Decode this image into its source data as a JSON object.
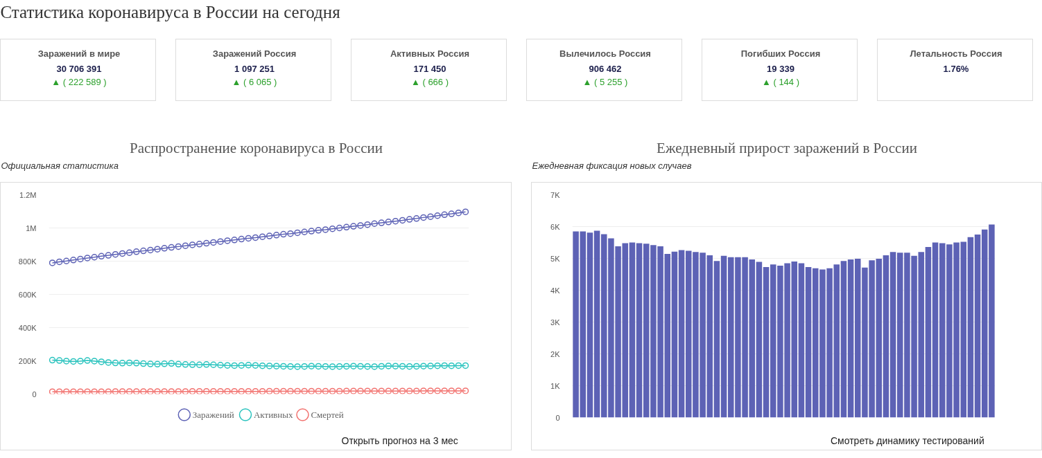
{
  "chart_data": [
    {
      "type": "other",
      "title": "Статистика коронавируса в России на сегодня",
      "categories": [
        "Заражений в мире",
        "Заражений Россия",
        "Активных Россия",
        "Вылечилось Россия",
        "Погибших Россия",
        "Летальность Россия"
      ],
      "series": [
        {
          "values": [
            30706391,
            1097251,
            171450,
            906462,
            19339,
            1.76
          ],
          "value_labels": [
            "30 706 391",
            "1 097 251",
            "171 450",
            "906 462",
            "19 339",
            "1.76%"
          ]
        },
        {
          "values": [
            222589,
            6065,
            666,
            5255,
            144,
            null
          ],
          "value_labels": [
            "▲ ( 222 589 )",
            "▲ ( 6 065 )",
            "▲ ( 666 )",
            "▲ ( 5 255 )",
            "▲ ( 144 )",
            null
          ]
        }
      ]
    },
    {
      "type": "line",
      "title": "Распространение коронавируса в России",
      "subtitle": "Официальная статистика",
      "categories": [
        null,
        null,
        null,
        null,
        null,
        null,
        null,
        null,
        null,
        null,
        null,
        null,
        null,
        null,
        null,
        null,
        null,
        null,
        null,
        null,
        null,
        null,
        null,
        null,
        null,
        null,
        null,
        null,
        null,
        null,
        null,
        null,
        null,
        null,
        null,
        null,
        null,
        null,
        null,
        null,
        null,
        null,
        null,
        null,
        null,
        null,
        null,
        null,
        null,
        null,
        null,
        null,
        null,
        null,
        null,
        null,
        null,
        null,
        null,
        null
      ],
      "series": [
        {
          "name": "Заражений",
          "color": "#5d62b5",
          "values": [
            790000,
            796000,
            801000,
            807000,
            813000,
            819000,
            824000,
            830000,
            835000,
            841000,
            846000,
            851000,
            857000,
            862000,
            867000,
            872000,
            878000,
            883000,
            888000,
            893000,
            898000,
            903000,
            908000,
            913000,
            918000,
            923000,
            928000,
            933000,
            938000,
            942000,
            947000,
            952000,
            957000,
            962000,
            966000,
            971000,
            976000,
            981000,
            986000,
            990000,
            995000,
            1000000,
            1005000,
            1010000,
            1015000,
            1020000,
            1026000,
            1031000,
            1036000,
            1041000,
            1046000,
            1052000,
            1057000,
            1063000,
            1068000,
            1074000,
            1080000,
            1085000,
            1091000,
            1097000
          ]
        },
        {
          "name": "Активных",
          "color": "#29c3be",
          "values": [
            204000,
            202000,
            198000,
            196000,
            198000,
            202000,
            198000,
            194000,
            190000,
            187000,
            186000,
            188000,
            186000,
            183000,
            181000,
            180000,
            182000,
            184000,
            180000,
            178000,
            177000,
            176000,
            178000,
            176000,
            174000,
            172000,
            171000,
            172000,
            174000,
            172000,
            170000,
            169000,
            168000,
            167000,
            166000,
            165000,
            166000,
            168000,
            167000,
            166000,
            165000,
            166000,
            167000,
            168000,
            167000,
            166000,
            165000,
            167000,
            169000,
            168000,
            167000,
            166000,
            167000,
            168000,
            169000,
            170000,
            171000,
            170000,
            171000,
            171000
          ]
        },
        {
          "name": "Смертей",
          "color": "#f2726f",
          "values": [
            14000,
            14000,
            14000,
            14000,
            14000,
            14000,
            14000,
            14000,
            14000,
            15000,
            15000,
            15000,
            15000,
            15000,
            15000,
            15000,
            15000,
            15000,
            15000,
            15000,
            16000,
            16000,
            16000,
            16000,
            16000,
            16000,
            16000,
            16000,
            16000,
            16000,
            16000,
            17000,
            17000,
            17000,
            17000,
            17000,
            17000,
            17000,
            17000,
            17000,
            17000,
            17000,
            18000,
            18000,
            18000,
            18000,
            18000,
            18000,
            18000,
            18000,
            18000,
            18000,
            18000,
            19000,
            19000,
            19000,
            19000,
            19000,
            19000,
            19000
          ]
        }
      ],
      "ylim": [
        0,
        1200000
      ],
      "yticks": [
        0,
        {
          "value": 200000,
          "label": "200K"
        },
        {
          "value": 400000,
          "label": "400K"
        },
        {
          "value": 600000,
          "label": "600K"
        },
        {
          "value": 800000,
          "label": "800K"
        },
        {
          "value": 1000000,
          "label": "1M"
        },
        {
          "value": 1200000,
          "label": "1.2M"
        }
      ],
      "grid": "y",
      "legend": "bottom",
      "marker": "circle",
      "line_style": "solid",
      "tick_labels": "y",
      "annotations": [
        "Открыть прогноз на 3 мес"
      ]
    },
    {
      "type": "bar",
      "title": "Ежедневный прирост заражений в России",
      "subtitle": "Ежедневная фиксация новых случаев",
      "categories": [
        null,
        null,
        null,
        null,
        null,
        null,
        null,
        null,
        null,
        null,
        null,
        null,
        null,
        null,
        null,
        null,
        null,
        null,
        null,
        null,
        null,
        null,
        null,
        null,
        null,
        null,
        null,
        null,
        null,
        null,
        null,
        null,
        null,
        null,
        null,
        null,
        null,
        null,
        null,
        null,
        null,
        null,
        null,
        null,
        null,
        null,
        null,
        null,
        null,
        null,
        null,
        null,
        null,
        null,
        null,
        null,
        null,
        null,
        null,
        null
      ],
      "values": [
        5850,
        5850,
        5810,
        5870,
        5760,
        5630,
        5380,
        5480,
        5500,
        5480,
        5460,
        5420,
        5380,
        5140,
        5210,
        5260,
        5240,
        5200,
        5180,
        5100,
        4920,
        5080,
        5040,
        5040,
        5040,
        4970,
        4890,
        4730,
        4810,
        4770,
        4850,
        4900,
        4850,
        4730,
        4690,
        4650,
        4690,
        4810,
        4920,
        4970,
        4990,
        4710,
        4940,
        4990,
        5100,
        5200,
        5180,
        5180,
        5080,
        5200,
        5360,
        5500,
        5480,
        5440,
        5500,
        5520,
        5670,
        5750,
        5910,
        6065
      ],
      "color": "#5d62b5",
      "ylim": [
        0,
        7000
      ],
      "yticks": [
        0,
        {
          "value": 1000,
          "label": "1K"
        },
        {
          "value": 2000,
          "label": "2K"
        },
        {
          "value": 3000,
          "label": "3K"
        },
        {
          "value": 4000,
          "label": "4K"
        },
        {
          "value": 5000,
          "label": "5K"
        },
        {
          "value": 6000,
          "label": "6K"
        },
        {
          "value": 7000,
          "label": "7K"
        }
      ],
      "grid": "y",
      "tick_labels": "y",
      "annotations": [
        "Смотреть динамику тестирований"
      ]
    }
  ]
}
